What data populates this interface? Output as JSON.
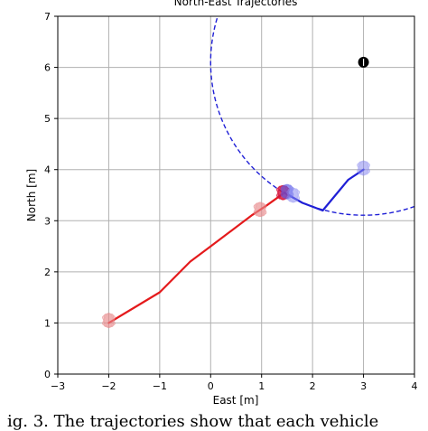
{
  "chart_data": {
    "type": "line",
    "title": "North-East Trajectories",
    "xlabel": "East [m]",
    "ylabel": "North [m]",
    "xlim": [
      -3,
      4
    ],
    "ylim": [
      0,
      7
    ],
    "xticks": [
      -3,
      -2,
      -1,
      0,
      1,
      2,
      3,
      4
    ],
    "yticks": [
      0,
      1,
      2,
      3,
      4,
      5,
      6,
      7
    ],
    "grid": true,
    "series": [
      {
        "kind": "trajectory",
        "color": "#e41a1c",
        "style": "solid",
        "points": [
          [
            -2.0,
            1.0
          ],
          [
            -1.5,
            1.3
          ],
          [
            -1.0,
            1.6
          ],
          [
            -0.7,
            1.9
          ],
          [
            -0.4,
            2.2
          ],
          [
            0.0,
            2.5
          ],
          [
            0.4,
            2.8
          ],
          [
            0.8,
            3.1
          ],
          [
            1.1,
            3.3
          ],
          [
            1.45,
            3.55
          ]
        ]
      },
      {
        "kind": "trajectory",
        "color": "#1f1fd6",
        "style": "solid",
        "points": [
          [
            1.45,
            3.55
          ],
          [
            1.8,
            3.35
          ],
          [
            2.2,
            3.2
          ],
          [
            2.45,
            3.5
          ],
          [
            2.7,
            3.8
          ],
          [
            3.0,
            4.0
          ]
        ]
      },
      {
        "kind": "circle",
        "color": "#1f1fd6",
        "style": "dashed",
        "center": [
          3.0,
          6.1
        ],
        "radius": 3.0
      }
    ],
    "markers": [
      {
        "kind": "red-vehicle",
        "color": "#e8888a",
        "x": -2.0,
        "y": 1.05,
        "opacity": 0.7
      },
      {
        "kind": "red-vehicle",
        "color": "#e8888a",
        "x": 0.97,
        "y": 3.22,
        "opacity": 0.7
      },
      {
        "kind": "red-vehicle",
        "color": "#d6123a",
        "x": 1.42,
        "y": 3.55,
        "opacity": 0.9
      },
      {
        "kind": "blue-vehicle",
        "color": "#5a5ae8",
        "x": 1.5,
        "y": 3.57,
        "opacity": 0.7
      },
      {
        "kind": "blue-vehicle",
        "color": "#8a8af0",
        "x": 1.62,
        "y": 3.5,
        "opacity": 0.6
      },
      {
        "kind": "blue-vehicle",
        "color": "#8a8af0",
        "x": 3.0,
        "y": 4.03,
        "opacity": 0.6
      },
      {
        "kind": "target",
        "color": "#000000",
        "x": 3.0,
        "y": 6.1,
        "opacity": 1.0
      }
    ]
  },
  "caption": "ig. 3.  The trajectories show that each vehicle"
}
